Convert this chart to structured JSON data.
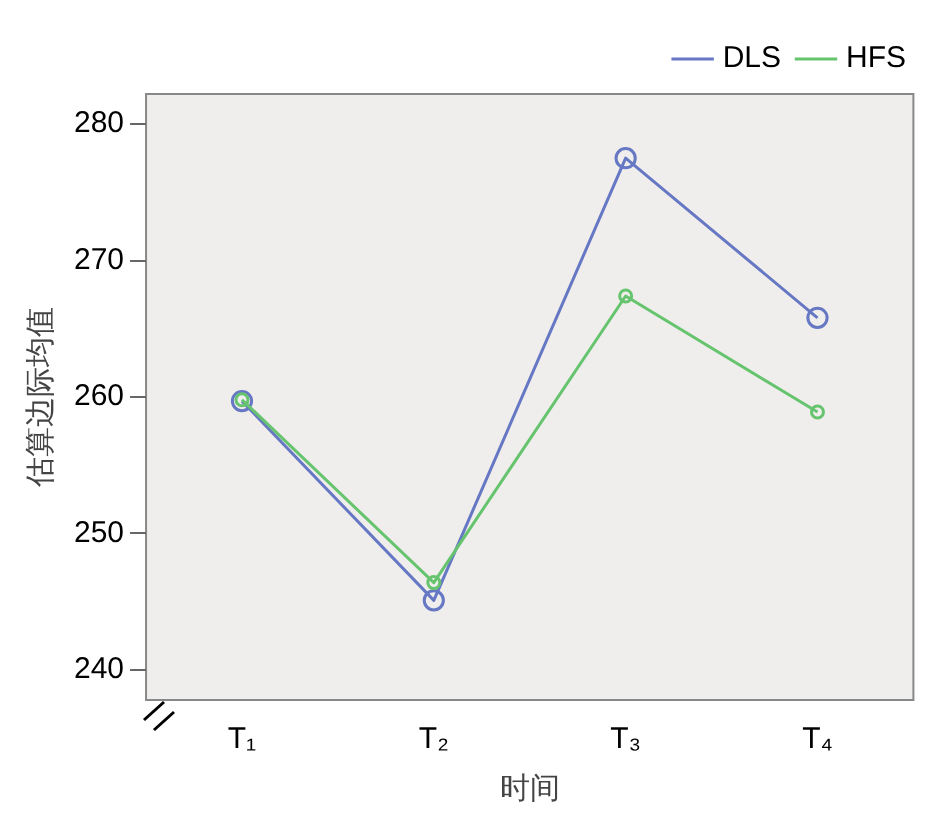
{
  "chart_data": {
    "type": "line",
    "xlabel": "时间",
    "ylabel": "估算边际均值",
    "categories": [
      "T₁",
      "T₂",
      "T₃",
      "T₄"
    ],
    "series": [
      {
        "name": "DLS",
        "color": "#6677c4",
        "values": [
          259.7,
          245.1,
          277.5,
          265.8
        ]
      },
      {
        "name": "HFS",
        "color": "#66c46e",
        "values": [
          259.8,
          246.4,
          267.4,
          258.9
        ]
      }
    ],
    "ylim": [
      237.8,
      282.2
    ],
    "yticks": [
      240,
      250,
      260,
      270,
      280
    ],
    "grid": false,
    "legend": "top right",
    "marker": "circle",
    "line_style": "solid"
  }
}
